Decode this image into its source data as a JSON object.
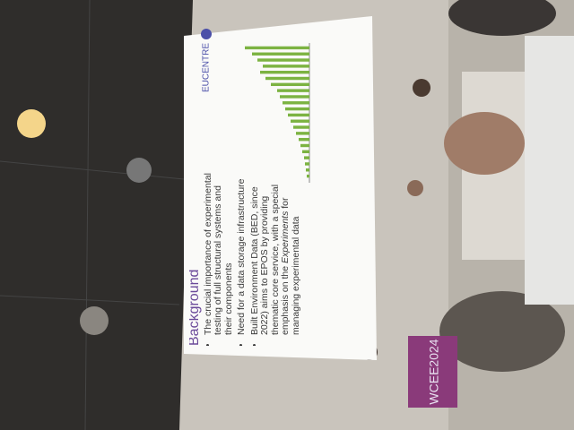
{
  "slide": {
    "logo": "EUCENTRE",
    "title": "Background",
    "bullets": [
      "The crucial importance of experimental testing of full structural systems and their components",
      "Need for a data storage infrastructure"
    ],
    "bullet3": [
      "Built Environment Data (BED, since 2022) aims to EPOS by providing thematic core service, with a special emphasis on the ",
      "Experiments",
      " for managing experimental data"
    ]
  },
  "slide_chart": {
    "type": "bar",
    "values": [
      72,
      64,
      58,
      52,
      55,
      49,
      43,
      36,
      33,
      30,
      27,
      24,
      21,
      18,
      15,
      12,
      10,
      8,
      6,
      5,
      4,
      3
    ],
    "ylim": [
      0,
      100
    ],
    "color": "#7cb342"
  },
  "banner": "WCEE2024"
}
